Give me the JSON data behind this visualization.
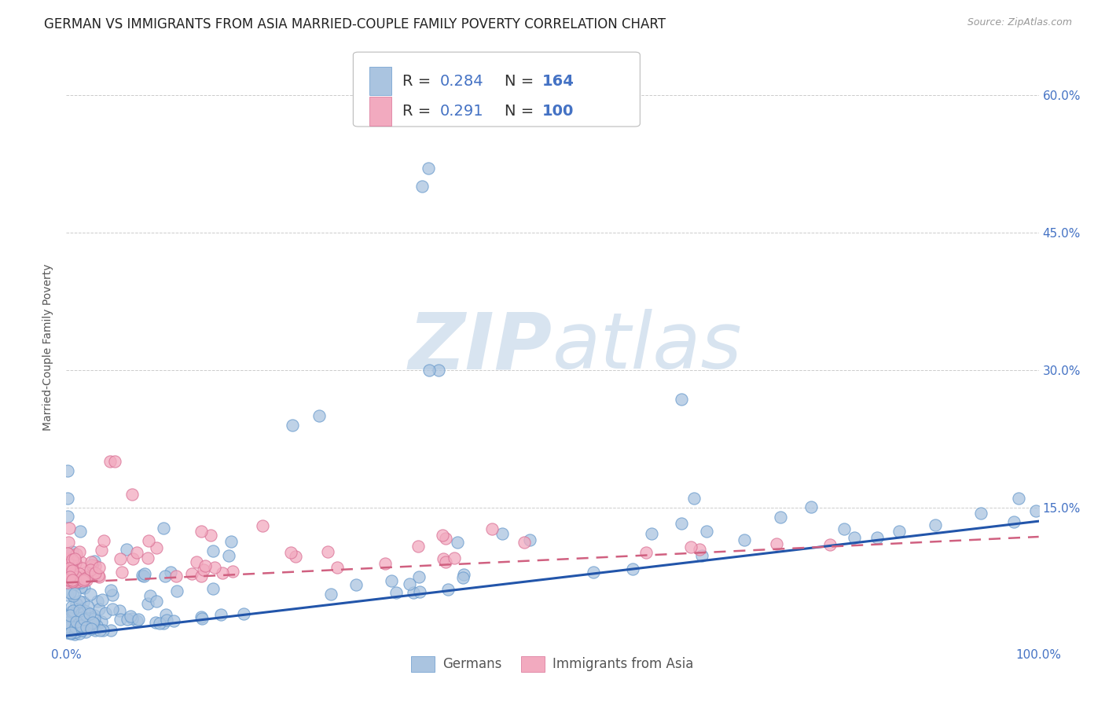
{
  "title": "GERMAN VS IMMIGRANTS FROM ASIA MARRIED-COUPLE FAMILY POVERTY CORRELATION CHART",
  "source": "Source: ZipAtlas.com",
  "ylabel": "Married-Couple Family Poverty",
  "xlim": [
    0,
    1.0
  ],
  "ylim": [
    0,
    0.65
  ],
  "ytick_vals": [
    0.0,
    0.15,
    0.3,
    0.45,
    0.6
  ],
  "ytick_labels": [
    "",
    "15.0%",
    "30.0%",
    "45.0%",
    "60.0%"
  ],
  "xtick_vals": [
    0.0,
    0.2,
    0.4,
    0.6,
    0.8,
    1.0
  ],
  "xtick_labels": [
    "0.0%",
    "",
    "",
    "",
    "",
    "100.0%"
  ],
  "german_color": "#aac4e0",
  "german_edge": "#6699cc",
  "asia_color": "#f2aabf",
  "asia_edge": "#d97095",
  "trend_german_color": "#2255aa",
  "trend_asia_color": "#d06080",
  "watermark_zip": "ZIP",
  "watermark_atlas": "atlas",
  "watermark_color": "#d8e4f0",
  "legend_R_german": "0.284",
  "legend_N_german": "164",
  "legend_R_asia": "0.291",
  "legend_N_asia": "100",
  "bg_color": "#ffffff",
  "grid_color": "#cccccc",
  "tick_color": "#4472c4",
  "title_fontsize": 12,
  "tick_fontsize": 11,
  "trendline_german_x0": 0.0,
  "trendline_german_x1": 1.0,
  "trendline_german_y0": 0.01,
  "trendline_german_y1": 0.135,
  "trendline_asia_x0": 0.0,
  "trendline_asia_x1": 1.0,
  "trendline_asia_y0": 0.068,
  "trendline_asia_y1": 0.118
}
